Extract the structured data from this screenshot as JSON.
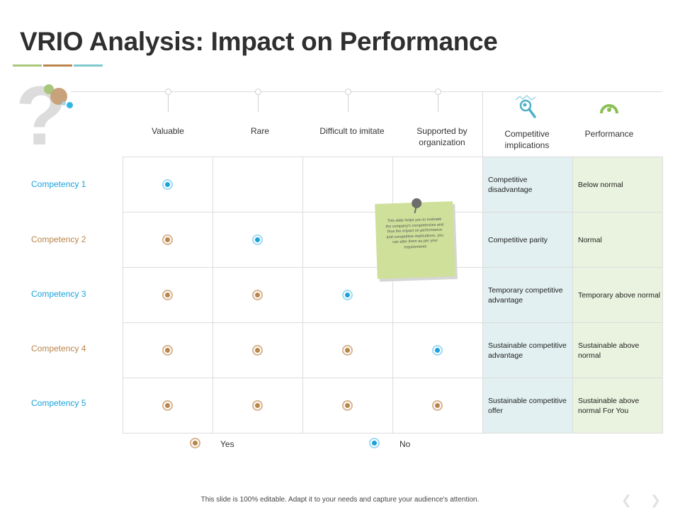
{
  "title": "VRIO Analysis: Impact on Performance",
  "accent_colors": [
    "#a8c77a",
    "#b9854a",
    "#33b5e5"
  ],
  "columns": {
    "valuable": "Valuable",
    "rare": "Rare",
    "difficult": "Difficult to imitate",
    "supported": "Supported by organization",
    "implications": "Competitive implications",
    "performance": "Performance"
  },
  "rows": [
    {
      "label": "Competency 1",
      "label_color": "#1aa3db",
      "marks": [
        "no",
        "",
        "",
        ""
      ],
      "implication": "Competitive disadvantage",
      "performance": "Below normal"
    },
    {
      "label": "Competency 2",
      "label_color": "#b9854a",
      "marks": [
        "yes",
        "no",
        "",
        ""
      ],
      "implication": "Competitive parity",
      "performance": "Normal"
    },
    {
      "label": "Competency 3",
      "label_color": "#1aa3db",
      "marks": [
        "yes",
        "yes",
        "no",
        ""
      ],
      "implication": "Temporary competitive advantage",
      "performance": "Temporary above normal"
    },
    {
      "label": "Competency 4",
      "label_color": "#b9854a",
      "marks": [
        "yes",
        "yes",
        "yes",
        "no"
      ],
      "implication": "Sustainable competitive advantage",
      "performance": "Sustainable above normal"
    },
    {
      "label": "Competency 5",
      "label_color": "#1aa3db",
      "marks": [
        "yes",
        "yes",
        "yes",
        "yes"
      ],
      "implication": "Sustainable competitive offer",
      "performance": "Sustainable above normal For You"
    }
  ],
  "sticky_note": "This slide helps you to evaluate the company's competencies and thus the impact on performance and competitive implications, you can alter them as per your requirements",
  "legend": {
    "yes": "Yes",
    "no": "No"
  },
  "icons": {
    "implications": "magnifier-analysis-icon",
    "performance": "speedometer-icon",
    "background": "question-mark-icon"
  },
  "footer": "This slide is 100% editable. Adapt it to your needs and capture your audience's attention.",
  "nav": {
    "prev": "❮",
    "next": "❯"
  }
}
